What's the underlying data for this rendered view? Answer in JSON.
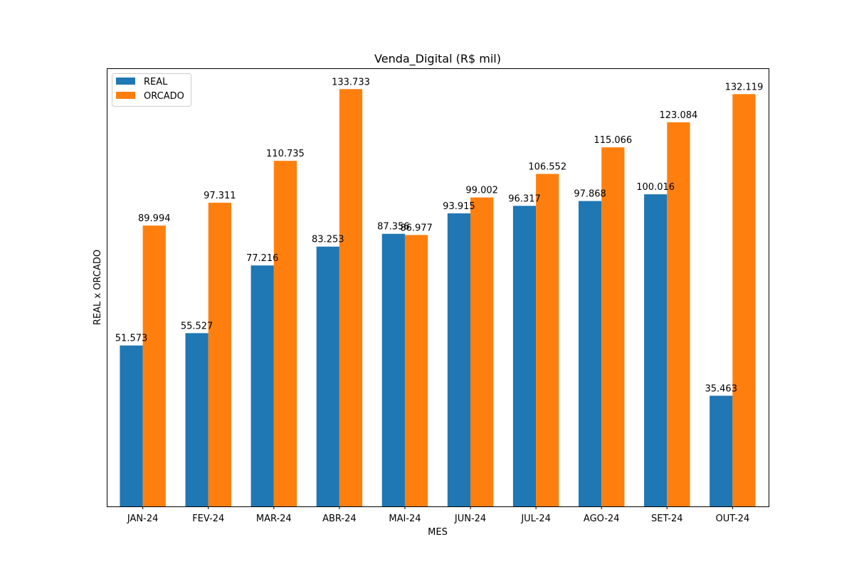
{
  "chart_data": {
    "type": "bar",
    "title": "Venda_Digital (R$ mil)",
    "xlabel": "MES",
    "ylabel": "REAL x ORCADO",
    "categories": [
      "JAN-24",
      "FEV-24",
      "MAR-24",
      "ABR-24",
      "MAI-24",
      "JUN-24",
      "JUL-24",
      "AGO-24",
      "SET-24",
      "OUT-24"
    ],
    "series": [
      {
        "name": "REAL",
        "color": "#1f77b4",
        "values": [
          51.573,
          55.527,
          77.216,
          83.253,
          87.356,
          93.915,
          96.317,
          97.868,
          100.016,
          35.463
        ],
        "labels": [
          "51.573",
          "55.527",
          "77.216",
          "83.253",
          "87.356",
          "93.915",
          "96.317",
          "97.868",
          "100.016",
          "35.463"
        ]
      },
      {
        "name": "ORCADO",
        "color": "#ff7f0e",
        "values": [
          89.994,
          97.311,
          110.735,
          133.733,
          86.977,
          99.002,
          106.552,
          115.066,
          123.084,
          132.119
        ],
        "labels": [
          "89.994",
          "97.311",
          "110.735",
          "133.733",
          "86.977",
          "99.002",
          "106.552",
          "115.066",
          "123.084",
          "132.119"
        ]
      }
    ],
    "ylim": [
      0,
      140.4
    ],
    "yticks_visible": false,
    "grid": false,
    "legend_position": "top-left"
  }
}
